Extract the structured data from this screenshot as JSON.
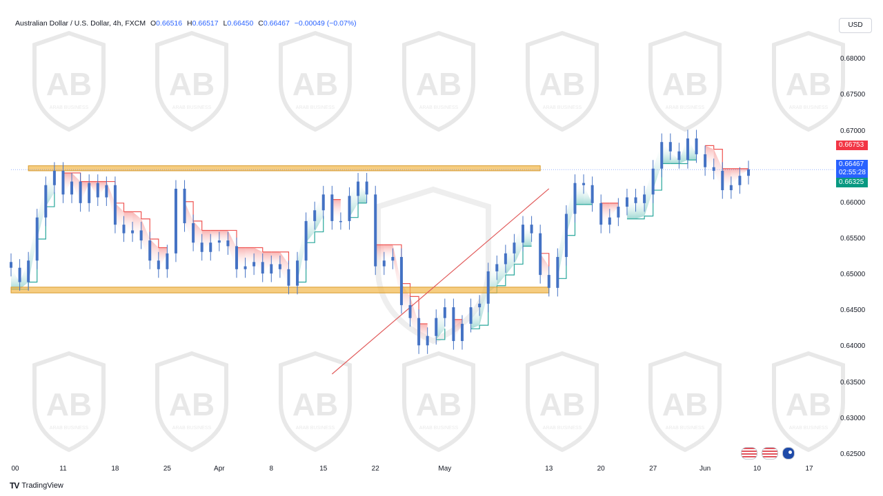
{
  "legend": {
    "symbol": "Australian Dollar / U.S. Dollar, 4h, FXCM",
    "open_label": "O",
    "open": "0.66516",
    "high_label": "H",
    "high": "0.66517",
    "low_label": "L",
    "low": "0.66450",
    "close_label": "C",
    "close": "0.66467",
    "change": "−0.00049 (−0.07%)"
  },
  "currency_button": "USD",
  "price_tags": {
    "red": "0.66753",
    "current": "0.66467",
    "countdown": "02:55:28",
    "green": "0.66325"
  },
  "footer": {
    "logo_text": "TV",
    "brand": "TradingView"
  },
  "watermark": {
    "text": "ARAB BUSINESS",
    "initials": "AB"
  },
  "icons": {
    "flag1": "us-flag-icon",
    "flag2": "us-flag-icon",
    "flag3": "australia-flag-icon"
  },
  "colors": {
    "bull": "#4472c4",
    "up_band": "#26a69a",
    "down_band": "#ef5350",
    "zone": "#f2b84b",
    "trend": "#e15a5a"
  },
  "chart_data": {
    "type": "candlestick",
    "instrument": "AUD/USD",
    "timeframe": "4h",
    "y_ticks": [
      "0.68000",
      "0.67500",
      "0.67000",
      "0.66500",
      "0.66000",
      "0.65500",
      "0.65000",
      "0.64500",
      "0.64000",
      "0.63500",
      "0.63000",
      "0.62500"
    ],
    "x_ticks": [
      "00",
      "11",
      "18",
      "25",
      "Apr",
      "8",
      "15",
      "22",
      "May",
      "13",
      "20",
      "27",
      "Jun",
      "10",
      "17"
    ],
    "ylim": [
      0.6245,
      0.683
    ],
    "x_index_range": [
      0,
      85
    ],
    "tick_index": [
      0,
      6,
      12,
      18,
      24,
      30,
      36,
      42,
      50,
      62,
      68,
      74,
      80,
      86,
      92
    ],
    "closes": [
      0.651,
      0.649,
      0.652,
      0.658,
      0.6625,
      0.6645,
      0.6612,
      0.663,
      0.66,
      0.6628,
      0.6608,
      0.6625,
      0.657,
      0.6558,
      0.6562,
      0.6548,
      0.652,
      0.6508,
      0.653,
      0.662,
      0.6572,
      0.6545,
      0.6532,
      0.6545,
      0.6548,
      0.654,
      0.6508,
      0.6512,
      0.6518,
      0.6502,
      0.6515,
      0.6508,
      0.6485,
      0.652,
      0.6575,
      0.659,
      0.6612,
      0.6575,
      0.6575,
      0.661,
      0.663,
      0.6612,
      0.6512,
      0.652,
      0.6525,
      0.6458,
      0.644,
      0.6402,
      0.6415,
      0.644,
      0.6455,
      0.6408,
      0.6432,
      0.6455,
      0.646,
      0.6505,
      0.6515,
      0.653,
      0.6545,
      0.657,
      0.6558,
      0.65,
      0.6482,
      0.6525,
      0.6585,
      0.6628,
      0.6625,
      0.66,
      0.657,
      0.658,
      0.6595,
      0.6608,
      0.66,
      0.6612,
      0.6648,
      0.6685,
      0.6672,
      0.666,
      0.669,
      0.6668,
      0.665,
      0.6645,
      0.6618,
      0.6625,
      0.6638,
      0.6647
    ],
    "support_zone": [
      0.6475,
      0.6483
    ],
    "resistance_zone": [
      0.6645,
      0.6652
    ],
    "trendline": [
      [
        37,
        0.6362
      ],
      [
        62,
        0.662
      ]
    ],
    "last_price": 0.66467
  }
}
